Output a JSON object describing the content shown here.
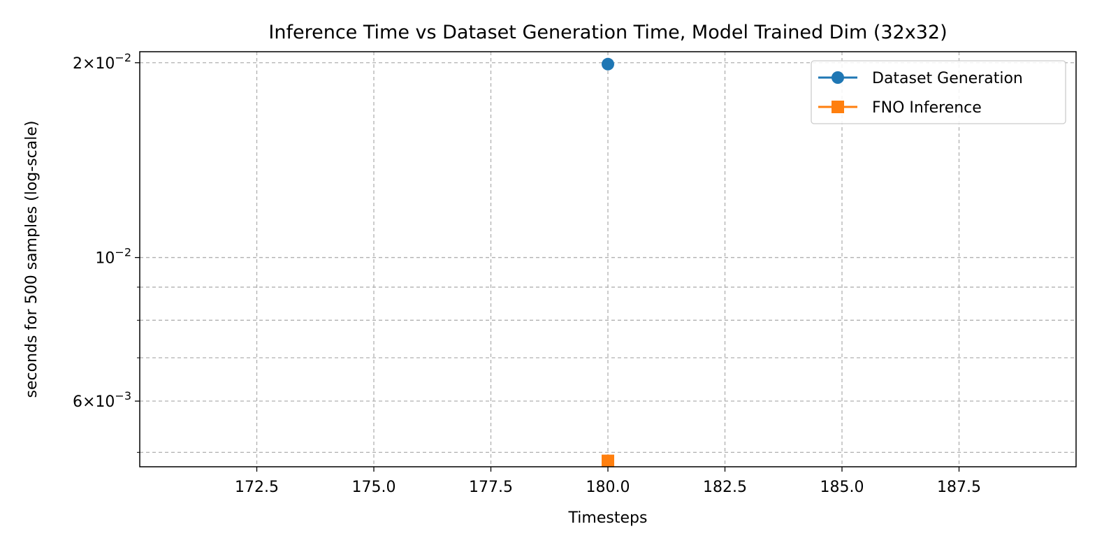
{
  "chart_data": {
    "type": "line",
    "title": "Inference Time vs Dataset Generation Time, Model Trained Dim (32x32)",
    "xlabel": "Timesteps",
    "ylabel": "seconds for 500 samples (log-scale)",
    "x_scale": "linear",
    "y_scale": "log",
    "xlim": [
      170.0,
      190.0
    ],
    "ylim": [
      0.00475,
      0.0208
    ],
    "x_ticks": [
      172.5,
      175.0,
      177.5,
      180.0,
      182.5,
      185.0,
      187.5
    ],
    "x_tick_labels": [
      "172.5",
      "175.0",
      "177.5",
      "180.0",
      "182.5",
      "185.0",
      "187.5"
    ],
    "y_major_ticks": [
      {
        "value": 0.02,
        "label_base": "2×10",
        "label_exp": "−2"
      },
      {
        "value": 0.01,
        "label_base": "10",
        "label_exp": "−2"
      },
      {
        "value": 0.006,
        "label_base": "6×10",
        "label_exp": "−3"
      }
    ],
    "y_minor_ticks": [
      0.005,
      0.007,
      0.008,
      0.009
    ],
    "grid": true,
    "legend_position": "top-right",
    "series": [
      {
        "name": "Dataset Generation",
        "color": "#1f77b4",
        "marker": "circle",
        "x": [
          180
        ],
        "y": [
          0.0199
        ]
      },
      {
        "name": "FNO Inference",
        "color": "#ff7f0e",
        "marker": "square",
        "x": [
          180
        ],
        "y": [
          0.00485
        ]
      }
    ]
  }
}
